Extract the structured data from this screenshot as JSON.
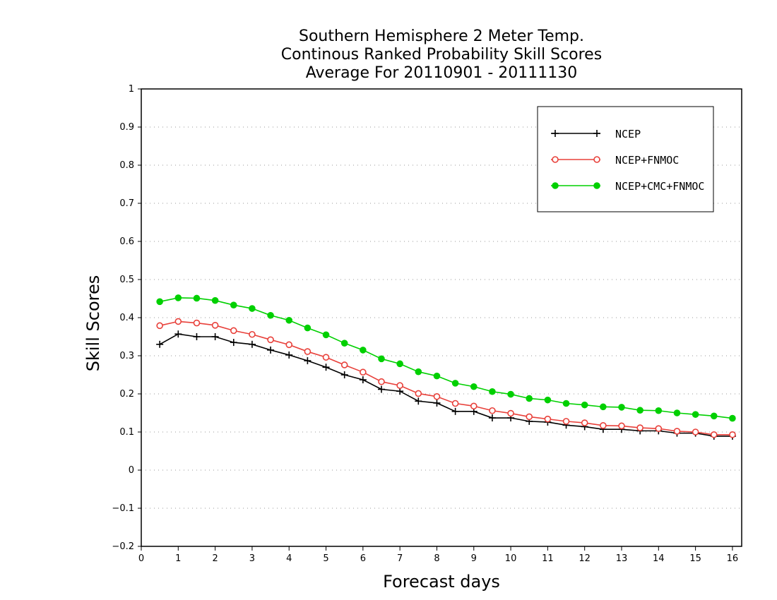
{
  "chart_data": {
    "type": "line",
    "title_lines": [
      "Southern Hemisphere 2 Meter Temp.",
      "Continous Ranked Probability Skill Scores",
      "Average For 20110901 - 20111130"
    ],
    "xlabel": "Forecast days",
    "ylabel": "Skill Scores",
    "xlim": [
      0,
      16.25
    ],
    "ylim": [
      -0.2,
      1
    ],
    "x_ticks": [
      "0",
      "1",
      "2",
      "3",
      "4",
      "5",
      "6",
      "7",
      "8",
      "9",
      "10",
      "11",
      "12",
      "13",
      "14",
      "15",
      "16"
    ],
    "y_ticks": [
      "−0.2",
      "−0.1",
      "0",
      "0.1",
      "0.2",
      "0.3",
      "0.4",
      "0.5",
      "0.6",
      "0.7",
      "0.8",
      "0.9",
      "1"
    ],
    "grid": "horizontal dotted",
    "legend_position": "top-right",
    "x": [
      0.5,
      1,
      1.5,
      2,
      2.5,
      3,
      3.5,
      4,
      4.5,
      5,
      5.5,
      6,
      6.5,
      7,
      7.5,
      8,
      8.5,
      9,
      9.5,
      10,
      10.5,
      11,
      11.5,
      12,
      12.5,
      13,
      13.5,
      14,
      14.5,
      15,
      15.5,
      16
    ],
    "series": [
      {
        "name": "NCEP",
        "color": "#000000",
        "marker": "plus",
        "values": [
          0.33,
          0.357,
          0.35,
          0.35,
          0.335,
          0.33,
          0.315,
          0.302,
          0.287,
          0.27,
          0.25,
          0.237,
          0.212,
          0.207,
          0.181,
          0.176,
          0.154,
          0.154,
          0.137,
          0.137,
          0.128,
          0.126,
          0.118,
          0.114,
          0.107,
          0.107,
          0.103,
          0.103,
          0.097,
          0.097,
          0.089,
          0.089
        ]
      },
      {
        "name": "NCEP+FNMOC",
        "color": "#e8403a",
        "marker": "open-circle",
        "values": [
          0.379,
          0.39,
          0.386,
          0.38,
          0.366,
          0.356,
          0.342,
          0.329,
          0.311,
          0.296,
          0.276,
          0.257,
          0.232,
          0.222,
          0.201,
          0.193,
          0.175,
          0.168,
          0.156,
          0.149,
          0.14,
          0.134,
          0.128,
          0.124,
          0.117,
          0.116,
          0.111,
          0.109,
          0.102,
          0.1,
          0.093,
          0.093
        ]
      },
      {
        "name": "NCEP+CMC+FNMOC",
        "color": "#00d000",
        "marker": "filled-circle",
        "values": [
          0.442,
          0.452,
          0.451,
          0.445,
          0.433,
          0.424,
          0.406,
          0.393,
          0.373,
          0.355,
          0.333,
          0.315,
          0.292,
          0.279,
          0.258,
          0.247,
          0.228,
          0.219,
          0.206,
          0.199,
          0.188,
          0.184,
          0.175,
          0.171,
          0.166,
          0.165,
          0.157,
          0.156,
          0.15,
          0.146,
          0.142,
          0.136
        ]
      }
    ]
  }
}
